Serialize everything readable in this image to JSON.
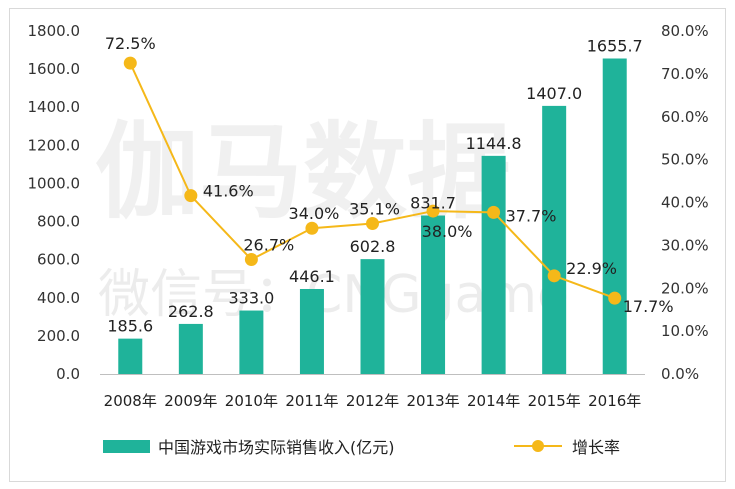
{
  "watermark": {
    "main": "伽马数据",
    "sub": "微信号：CNGgame"
  },
  "chart_data": {
    "type": "bar",
    "categories": [
      "2008年",
      "2009年",
      "2010年",
      "2011年",
      "2012年",
      "2013年",
      "2014年",
      "2015年",
      "2016年"
    ],
    "series": [
      {
        "name": "中国游戏市场实际销售收入(亿元)",
        "type": "bar",
        "axis": "left",
        "values": [
          185.6,
          262.8,
          333.0,
          446.1,
          602.8,
          831.7,
          1144.8,
          1407.0,
          1655.7
        ],
        "labels": [
          "185.6",
          "262.8",
          "333.0",
          "446.1",
          "602.8",
          "831.7",
          "1144.8",
          "1407.0",
          "1655.7"
        ],
        "color": "#1fb39a"
      },
      {
        "name": "增长率",
        "type": "line",
        "axis": "right",
        "values": [
          72.5,
          41.6,
          26.7,
          34.0,
          35.1,
          38.0,
          37.7,
          22.9,
          17.7
        ],
        "labels": [
          "72.5%",
          "41.6%",
          "26.7%",
          "34.0%",
          "35.1%",
          "38.0%",
          "37.7%",
          "22.9%",
          "17.7%"
        ],
        "color": "#f5b819"
      }
    ],
    "y_left": {
      "ylim": [
        0,
        1800
      ],
      "ticks": [
        "0.0",
        "200.0",
        "400.0",
        "600.0",
        "800.0",
        "1000.0",
        "1200.0",
        "1400.0",
        "1600.0",
        "1800.0"
      ]
    },
    "y_right": {
      "ylim": [
        0,
        80
      ],
      "ticks": [
        "0.0%",
        "10.0%",
        "20.0%",
        "30.0%",
        "40.0%",
        "50.0%",
        "60.0%",
        "70.0%",
        "80.0%"
      ]
    },
    "grid": false,
    "legend_position": "bottom"
  }
}
